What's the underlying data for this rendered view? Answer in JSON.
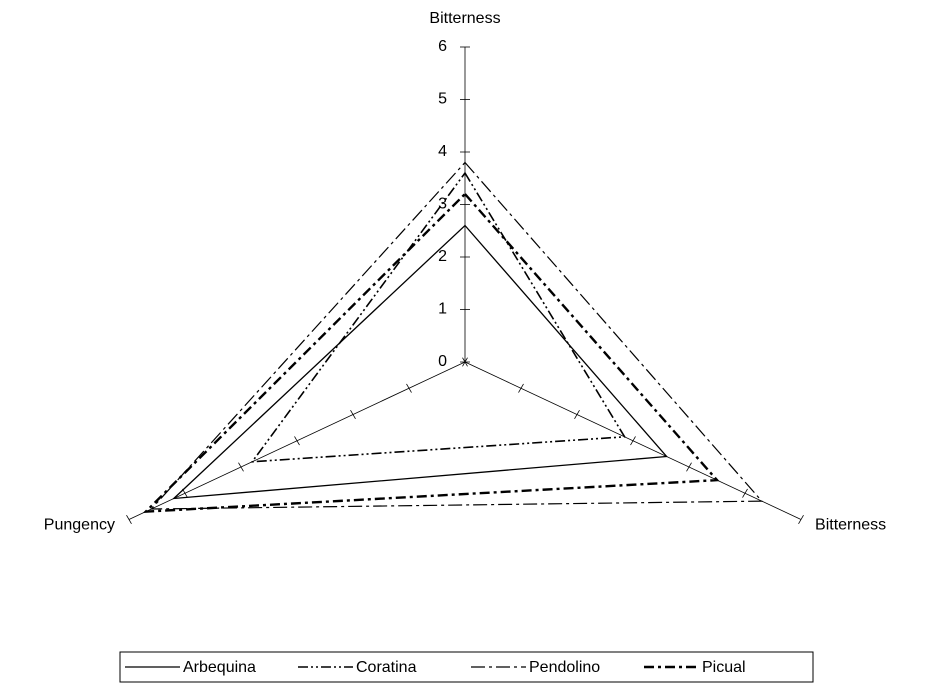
{
  "chart_data": {
    "type": "radar",
    "categories": [
      "Bitterness",
      "Bitterness",
      "Pungency"
    ],
    "ylim": [
      0,
      6
    ],
    "yticks": [
      0,
      1,
      2,
      3,
      4,
      5,
      6
    ],
    "series": [
      {
        "name": "Arbequina",
        "color": "#000000",
        "dash": "solid",
        "values": [
          2.6,
          3.6,
          5.2
        ]
      },
      {
        "name": "Coratina",
        "color": "#000000",
        "dash": "dash-dot-dot",
        "values": [
          3.6,
          2.85,
          3.8
        ]
      },
      {
        "name": "Pendolino",
        "color": "#000000",
        "dash": "long-dash-dot",
        "values": [
          3.8,
          5.3,
          5.6
        ]
      },
      {
        "name": "Picual",
        "color": "#000000",
        "dash": "thick-dash-dot",
        "values": [
          3.2,
          4.5,
          5.7
        ]
      }
    ]
  }
}
